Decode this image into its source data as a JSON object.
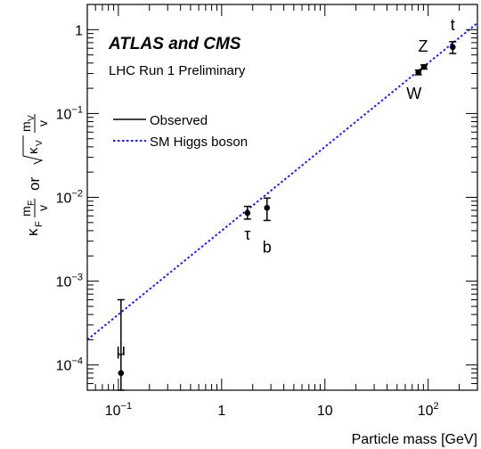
{
  "chart_data": {
    "type": "scatter",
    "xscale": "log",
    "yscale": "log",
    "xlim": [
      0.05,
      300
    ],
    "ylim": [
      5e-05,
      2
    ],
    "xlabel": "Particle mass [GeV]",
    "ylabel": {
      "part1": "κ",
      "part1_sub": "F",
      "frac1_num": "m",
      "frac1_num_sub": "F",
      "frac1_den": "v",
      "or": "or",
      "sqrt_k": "κ",
      "sqrt_k_sub": "V",
      "frac2_num": "m",
      "frac2_num_sub": "V",
      "frac2_den": "v"
    },
    "xticks": [
      {
        "value": 0.1,
        "base": "10",
        "exp": "−1"
      },
      {
        "value": 1,
        "base": "1",
        "exp": ""
      },
      {
        "value": 10,
        "base": "10",
        "exp": ""
      },
      {
        "value": 100,
        "base": "10",
        "exp": "2"
      }
    ],
    "yticks": [
      {
        "value": 1,
        "base": "1",
        "exp": ""
      },
      {
        "value": 0.1,
        "base": "10",
        "exp": "−1"
      },
      {
        "value": 0.01,
        "base": "10",
        "exp": "−2"
      },
      {
        "value": 0.001,
        "base": "10",
        "exp": "−3"
      },
      {
        "value": 0.0001,
        "base": "10",
        "exp": "−4"
      }
    ],
    "title": "ATLAS and CMS",
    "subtitle": "LHC Run 1 Preliminary",
    "legend": {
      "position": "top-left",
      "entries": [
        {
          "label": "Observed",
          "style": "solid",
          "color": "#000000"
        },
        {
          "label": "SM Higgs boson",
          "style": "dotted",
          "color": "#1a1aff"
        }
      ]
    },
    "sm_line": {
      "slope": 0.004,
      "color": "#1a1aff"
    },
    "points": [
      {
        "name": "μ",
        "x": 0.106,
        "y": 8e-05,
        "ylo": 5e-05,
        "yhi": 0.0006
      },
      {
        "name": "τ",
        "x": 1.78,
        "y": 0.0065,
        "ylo": 0.0055,
        "yhi": 0.0078
      },
      {
        "name": "b",
        "x": 2.75,
        "y": 0.0075,
        "ylo": 0.0053,
        "yhi": 0.0098
      },
      {
        "name": "W",
        "x": 80.4,
        "y": 0.31,
        "ylo": 0.29,
        "yhi": 0.33
      },
      {
        "name": "Z",
        "x": 91.2,
        "y": 0.36,
        "ylo": 0.34,
        "yhi": 0.38
      },
      {
        "name": "t",
        "x": 173,
        "y": 0.62,
        "ylo": 0.52,
        "yhi": 0.72
      }
    ]
  }
}
